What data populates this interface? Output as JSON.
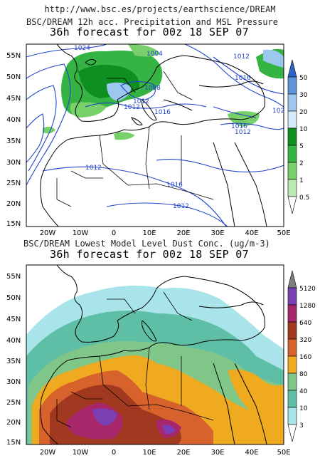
{
  "url": "http://www.bsc.es/projects/earthscience/DREAM",
  "panel1": {
    "title": "BSC/DREAM 12h acc. Precipitation and MSL Pressure",
    "subtitle": "36h forecast for 00z 18 SEP 07",
    "lat_labels": [
      "55N",
      "50N",
      "45N",
      "40N",
      "35N",
      "30N",
      "25N",
      "20N",
      "15N"
    ],
    "lon_labels": [
      "20W",
      "10W",
      "0",
      "10E",
      "20E",
      "30E",
      "40E",
      "50E"
    ],
    "isobar_labels": [
      "1024",
      "1004",
      "1012",
      "1016",
      "1008",
      "1012",
      "1012",
      "1016",
      "1016",
      "1012",
      "1012",
      "1016",
      "1012",
      "102"
    ],
    "colorbar": {
      "labels": [
        "50",
        "30",
        "20",
        "10",
        "5",
        "2",
        "1",
        "0.5"
      ],
      "colors": [
        "#2c66c9",
        "#5f94dd",
        "#9cc7ef",
        "#d4ecfa",
        "#0e8f1f",
        "#36b443",
        "#78d06a",
        "#b9eab0"
      ]
    }
  },
  "panel2": {
    "title": "BSC/DREAM Lowest Model Level Dust Conc. (ug/m-3)",
    "subtitle": "36h forecast for 00z 18 SEP 07",
    "lat_labels": [
      "55N",
      "50N",
      "45N",
      "40N",
      "35N",
      "30N",
      "25N",
      "20N",
      "15N"
    ],
    "lon_labels": [
      "20W",
      "10W",
      "0",
      "10E",
      "20E",
      "30E",
      "40E",
      "50E"
    ],
    "colorbar": {
      "labels": [
        "5120",
        "1280",
        "640",
        "320",
        "160",
        "80",
        "40",
        "10",
        "3"
      ],
      "colors": [
        "#7f7f7f",
        "#7a3fb3",
        "#a8276a",
        "#a0391f",
        "#d8622c",
        "#f0aa1f",
        "#7fc688",
        "#5fbfa6",
        "#a8e4ea",
        "#ffffff"
      ]
    }
  }
}
